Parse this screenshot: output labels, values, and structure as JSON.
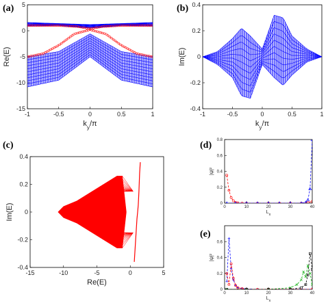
{
  "chart_data": [
    {
      "id": "a",
      "panel_label": "(a)",
      "type": "line",
      "xlabel": "k_y/π",
      "ylabel": "Re(E)",
      "xlim": [
        -1,
        1
      ],
      "ylim": [
        -15,
        5
      ],
      "xticks": [
        "-1",
        "-0.5",
        "0",
        "0.5",
        "1"
      ],
      "yticks": [
        "5",
        "0",
        "-5",
        "-10",
        "-15"
      ],
      "series": [
        {
          "color": "#0000ff",
          "style": "band",
          "x": [
            -1,
            -0.5,
            0,
            0.5,
            1
          ],
          "y_top": [
            -5.0,
            -4.0,
            -0.6,
            -4.0,
            -5.0
          ],
          "y_bottom": [
            -10.8,
            -9.5,
            -5.0,
            -9.5,
            -10.8
          ]
        },
        {
          "color": "#0000ff",
          "style": "band",
          "x": [
            -1,
            -0.5,
            0,
            0.5,
            1
          ],
          "y_top": [
            1.6,
            1.4,
            1.2,
            1.4,
            1.6
          ],
          "y_bottom": [
            0.9,
            1.0,
            0.5,
            1.0,
            0.9
          ]
        },
        {
          "color": "#ff0000",
          "style": "markers",
          "x": [
            -1,
            -0.75,
            -0.5,
            -0.25,
            0,
            0.25,
            0.5,
            0.75,
            1
          ],
          "y": [
            -5.0,
            -4.4,
            -2.8,
            -0.6,
            0.2,
            -0.6,
            -2.8,
            -4.4,
            -5.0
          ]
        },
        {
          "color": "#ff0000",
          "style": "markers",
          "x": [
            -1,
            -0.5,
            -0.2,
            0,
            0.2,
            0.5,
            1
          ],
          "y": [
            1.0,
            1.0,
            0.8,
            0.4,
            0.8,
            1.0,
            1.0
          ]
        }
      ]
    },
    {
      "id": "b",
      "panel_label": "(b)",
      "type": "line",
      "xlabel": "k_y/π",
      "ylabel": "Im(E)",
      "xlim": [
        -1,
        1
      ],
      "ylim": [
        -0.4,
        0.4
      ],
      "xticks": [
        "-1",
        "-0.5",
        "0",
        "0.5",
        "1"
      ],
      "yticks": [
        "0.4",
        "0.2",
        "0",
        "-0.2",
        "-0.4"
      ],
      "series": [
        {
          "color": "#0000ff",
          "style": "band",
          "x": [
            -1,
            -0.75,
            -0.5,
            -0.35,
            -0.2,
            0,
            0.2,
            0.35,
            0.5,
            0.75,
            1
          ],
          "y_top": [
            0,
            0.04,
            0.14,
            0.22,
            0.16,
            0.06,
            0.32,
            0.3,
            0.16,
            0.06,
            0
          ],
          "y_bottom": [
            0,
            -0.06,
            -0.16,
            -0.3,
            -0.32,
            -0.06,
            -0.16,
            -0.22,
            -0.14,
            -0.04,
            0
          ]
        }
      ]
    },
    {
      "id": "c",
      "panel_label": "(c)",
      "type": "scatter",
      "xlabel": "Re(E)",
      "ylabel": "Im(E)",
      "xlim": [
        -15,
        5
      ],
      "ylim": [
        -0.4,
        0.4
      ],
      "xticks": [
        "-15",
        "-10",
        "-5",
        "0",
        "5"
      ],
      "yticks": [
        "0.4",
        "0.2",
        "0",
        "-0.2",
        "-0.4"
      ],
      "series": [
        {
          "color": "#ff0000",
          "style": "region",
          "x": [
            -10.8,
            -10,
            -8,
            -6,
            -4,
            -2,
            -1.2,
            -0.6,
            -1.2,
            -2,
            -4,
            -6,
            -8,
            -10,
            -10.8
          ],
          "y": [
            0,
            0.04,
            0.08,
            0.14,
            0.2,
            0.26,
            0.26,
            0,
            -0.26,
            -0.26,
            -0.2,
            -0.14,
            -0.08,
            -0.04,
            0
          ]
        },
        {
          "color": "#ff0000",
          "style": "line",
          "x": [
            0.6,
            0.8,
            1.0,
            1.1,
            1.2,
            1.3,
            1.4,
            1.5
          ],
          "y": [
            -0.36,
            -0.2,
            -0.05,
            0,
            0.05,
            0.15,
            0.28,
            0.36
          ]
        }
      ]
    },
    {
      "id": "d",
      "panel_label": "(d)",
      "type": "line",
      "xlabel": "L_x",
      "ylabel": "|ψ|²",
      "xlim": [
        0,
        40
      ],
      "ylim": [
        0,
        0.8
      ],
      "xticks": [
        "0",
        "10",
        "20",
        "30",
        "40"
      ],
      "yticks": [
        "0.8",
        "0.6",
        "0.4",
        "0.2",
        "0"
      ],
      "series": [
        {
          "color": "#ff0000",
          "marker": "circle",
          "x": [
            1,
            2,
            3,
            4,
            5,
            6,
            8,
            10,
            15,
            20,
            25,
            30,
            35,
            38,
            40
          ],
          "y": [
            0.35,
            0.16,
            0.07,
            0.03,
            0.01,
            0.004,
            0,
            0,
            0,
            0,
            0,
            0,
            0,
            0.01,
            0.02
          ]
        },
        {
          "color": "#0000ff",
          "marker": "triangle",
          "x": [
            1,
            5,
            10,
            15,
            20,
            25,
            30,
            35,
            37,
            38,
            39,
            40
          ],
          "y": [
            0,
            0,
            0,
            0,
            0,
            0,
            0,
            0,
            0.01,
            0.04,
            0.18,
            0.8
          ]
        }
      ]
    },
    {
      "id": "e",
      "panel_label": "(e)",
      "type": "line",
      "xlabel": "L_x",
      "ylabel": "|ψ|²",
      "xlim": [
        0,
        40
      ],
      "ylim": [
        0,
        0.8
      ],
      "xticks": [
        "0",
        "10",
        "20",
        "30",
        "40"
      ],
      "yticks": [
        "0.6",
        "0.4",
        "0.2",
        "0"
      ],
      "series": [
        {
          "color": "#0000ff",
          "marker": "plus",
          "x": [
            1,
            2,
            3,
            4,
            5,
            6,
            8,
            10,
            15,
            20,
            30,
            40
          ],
          "y": [
            0.1,
            0.64,
            0.26,
            0.12,
            0.05,
            0.02,
            0.01,
            0.005,
            0,
            0,
            0,
            0
          ]
        },
        {
          "color": "#ff0000",
          "marker": "circle",
          "x": [
            1,
            2,
            3,
            4,
            5,
            6,
            8,
            10,
            15,
            20,
            30,
            40
          ],
          "y": [
            0.2,
            0.06,
            0.32,
            0.14,
            0.05,
            0.02,
            0.01,
            0,
            0,
            0,
            0,
            0
          ]
        },
        {
          "color": "#00aa00",
          "marker": "x",
          "x": [
            1,
            10,
            20,
            30,
            33,
            35,
            36,
            37,
            38,
            39,
            40
          ],
          "y": [
            0,
            0,
            0,
            0.02,
            0.06,
            0.12,
            0.22,
            0.16,
            0.3,
            0.2,
            0.06
          ]
        },
        {
          "color": "#000000",
          "marker": "square",
          "x": [
            1,
            10,
            20,
            30,
            35,
            37,
            38,
            39,
            40
          ],
          "y": [
            0,
            0,
            0,
            0,
            0.02,
            0.06,
            0.18,
            0.45,
            0.25
          ]
        }
      ]
    }
  ]
}
